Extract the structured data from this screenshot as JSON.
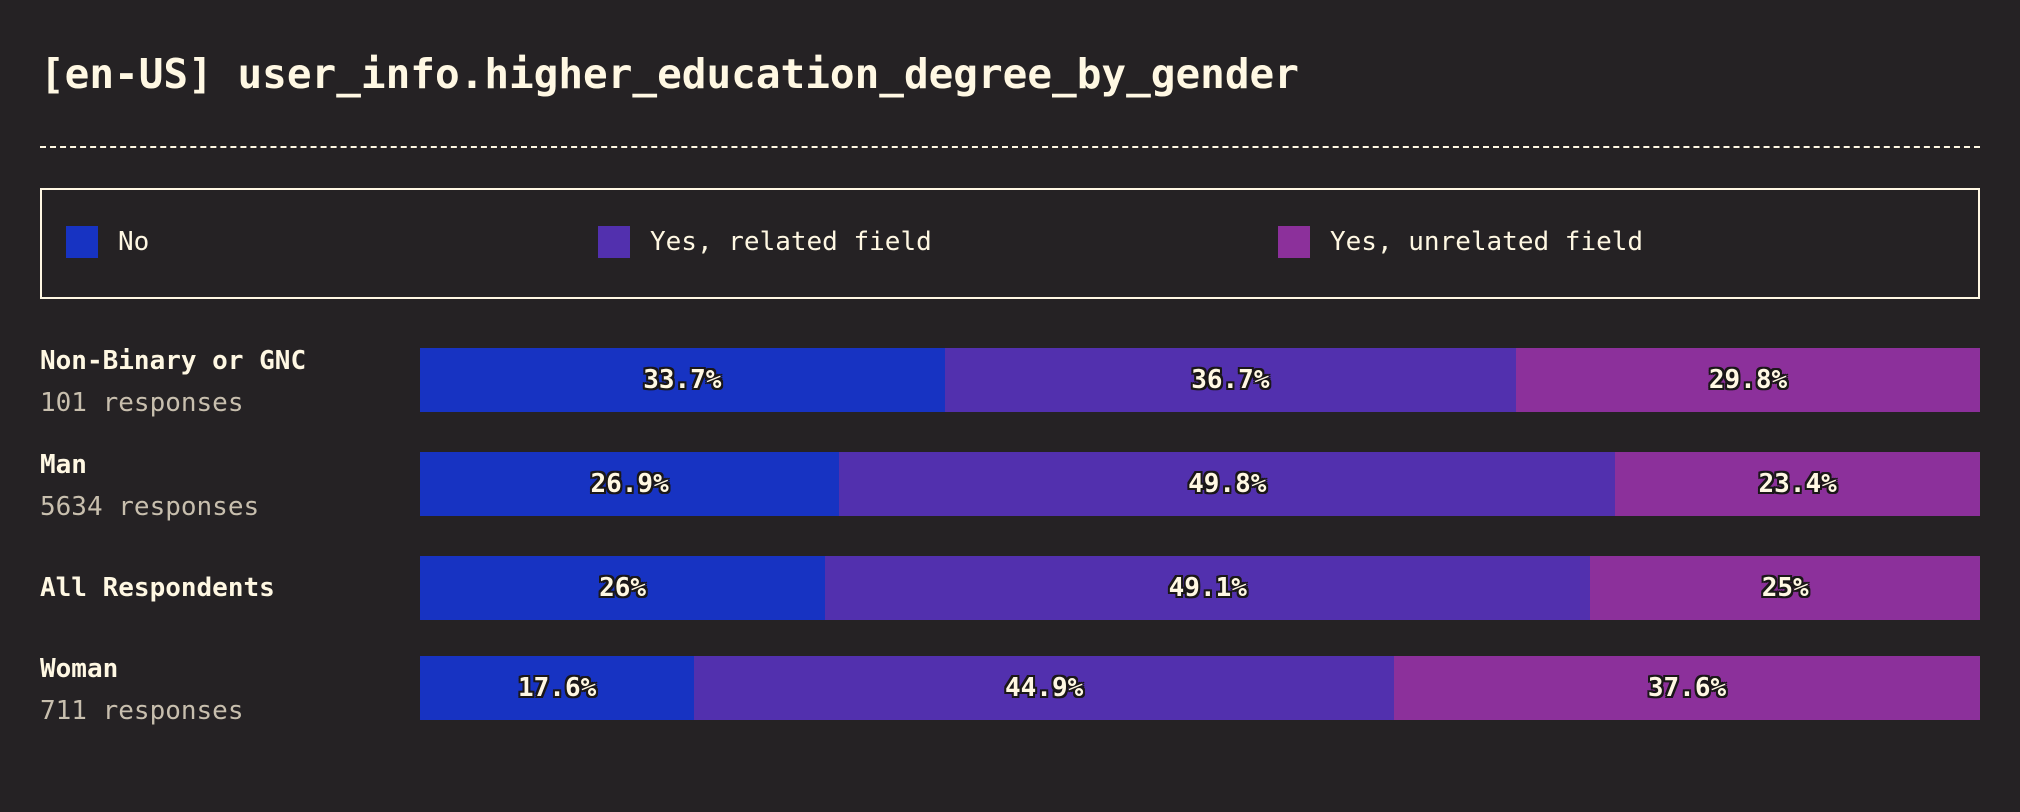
{
  "title": "[en-US] user_info.higher_education_degree_by_gender",
  "colors": {
    "background": "#252224",
    "text": "#fff8e3",
    "muted_text": "#c8bfae"
  },
  "chart_data": {
    "type": "bar",
    "orientation": "horizontal",
    "stacked": true,
    "normalized": true,
    "title": "[en-US] user_info.higher_education_degree_by_gender",
    "legend": {
      "placement": "top",
      "entries": [
        {
          "name": "No",
          "color": "#1733c2"
        },
        {
          "name": "Yes, related field",
          "color": "#5230ae"
        },
        {
          "name": "Yes, unrelated field",
          "color": "#8c309b"
        }
      ]
    },
    "categories": [
      {
        "name": "Non-Binary or GNC",
        "responses": "101 responses"
      },
      {
        "name": "Man",
        "responses": "5634 responses"
      },
      {
        "name": "All Respondents",
        "responses": ""
      },
      {
        "name": "Woman",
        "responses": "711 responses"
      }
    ],
    "series": [
      {
        "name": "No",
        "values": [
          33.7,
          26.9,
          26,
          17.6
        ],
        "labels": [
          "33.7%",
          "26.9%",
          "26%",
          "17.6%"
        ]
      },
      {
        "name": "Yes, related field",
        "values": [
          36.7,
          49.8,
          49.1,
          44.9
        ],
        "labels": [
          "36.7%",
          "49.8%",
          "49.1%",
          "44.9%"
        ]
      },
      {
        "name": "Yes, unrelated field",
        "values": [
          29.8,
          23.4,
          25,
          37.6
        ],
        "labels": [
          "29.8%",
          "23.4%",
          "25%",
          "37.6%"
        ]
      }
    ],
    "xlim": [
      0,
      100
    ]
  }
}
